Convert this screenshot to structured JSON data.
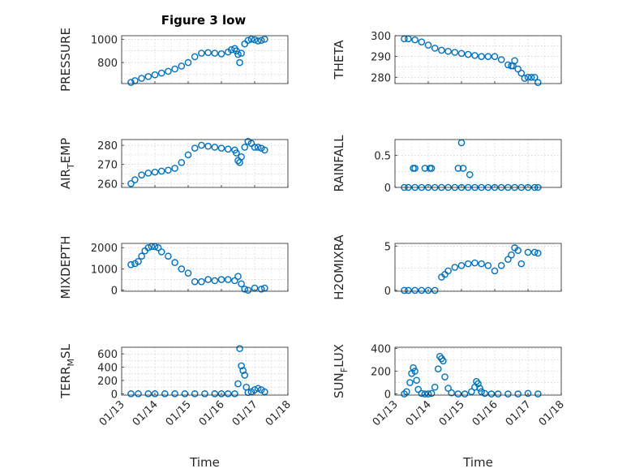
{
  "chart_data": {
    "type": "scatter",
    "title": "Figure 3 low",
    "marker_color": "#0072BD",
    "grid": true,
    "x_ticks": [
      "01/13",
      "01/14",
      "01/15",
      "01/16",
      "01/17",
      "01/18"
    ],
    "x_range_days": [
      13,
      18
    ],
    "xlabel": "Time",
    "panels": [
      {
        "id": "pressure",
        "col": 0,
        "row": 0,
        "ylabel": "PRESSURE",
        "ylim": [
          620,
          1030
        ],
        "yticks": [
          800,
          1000
        ],
        "ytick_labels": [
          "800",
          "1000"
        ],
        "x": [
          13.28,
          13.4,
          13.6,
          13.8,
          14.0,
          14.2,
          14.4,
          14.6,
          14.8,
          15.0,
          15.2,
          15.4,
          15.6,
          15.8,
          16.0,
          16.2,
          16.3,
          16.4,
          16.45,
          16.5,
          16.55,
          16.6,
          16.7,
          16.8,
          16.9,
          17.0,
          17.1,
          17.2,
          17.3
        ],
        "y": [
          630,
          645,
          665,
          680,
          695,
          710,
          725,
          745,
          770,
          800,
          850,
          880,
          885,
          880,
          875,
          890,
          910,
          920,
          900,
          870,
          800,
          880,
          960,
          990,
          1000,
          995,
          985,
          990,
          1000
        ]
      },
      {
        "id": "theta",
        "col": 1,
        "row": 0,
        "ylabel": "THETA",
        "ylim": [
          277,
          300
        ],
        "yticks": [
          280,
          290,
          300
        ],
        "ytick_labels": [
          "280",
          "290",
          "300"
        ],
        "x": [
          13.28,
          13.4,
          13.6,
          13.8,
          14.0,
          14.2,
          14.4,
          14.6,
          14.8,
          15.0,
          15.2,
          15.4,
          15.6,
          15.8,
          16.0,
          16.2,
          16.4,
          16.5,
          16.55,
          16.6,
          16.7,
          16.8,
          16.9,
          17.0,
          17.1,
          17.2,
          17.3
        ],
        "y": [
          298.5,
          298.5,
          298,
          297,
          295.5,
          294,
          293,
          292.5,
          292,
          291.5,
          291,
          290.5,
          290,
          290,
          290,
          288.5,
          286,
          285.5,
          285.5,
          288,
          284,
          282,
          279.5,
          280,
          280,
          280,
          277.5
        ]
      },
      {
        "id": "air_temp",
        "col": 0,
        "row": 1,
        "ylabel": "AIR",
        "ylabel_sub": "T",
        "ylabel_rest": "EMP",
        "ylim": [
          258,
          283
        ],
        "yticks": [
          260,
          270,
          280
        ],
        "ytick_labels": [
          "260",
          "270",
          "280"
        ],
        "x": [
          13.28,
          13.4,
          13.6,
          13.8,
          14.0,
          14.2,
          14.4,
          14.6,
          14.8,
          15.0,
          15.2,
          15.4,
          15.6,
          15.8,
          16.0,
          16.2,
          16.4,
          16.45,
          16.5,
          16.55,
          16.6,
          16.7,
          16.8,
          16.9,
          17.0,
          17.1,
          17.2,
          17.3
        ],
        "y": [
          260,
          262,
          264.5,
          265.5,
          266,
          266.5,
          267,
          268,
          271,
          275,
          278.5,
          280,
          279.5,
          279,
          278.5,
          278,
          277.5,
          276,
          272,
          271,
          274,
          279,
          282,
          281,
          279,
          279,
          278.5,
          277.5
        ]
      },
      {
        "id": "rainfall",
        "col": 1,
        "row": 1,
        "ylabel": "RAINFALL",
        "ylim": [
          0,
          0.75
        ],
        "yticks": [
          0,
          0.5
        ],
        "ytick_labels": [
          "0",
          "0.5"
        ],
        "x": [
          13.28,
          13.4,
          13.6,
          13.8,
          14.0,
          14.2,
          14.4,
          14.6,
          14.8,
          15.0,
          15.2,
          15.4,
          15.6,
          15.8,
          16.0,
          16.2,
          16.4,
          16.6,
          16.8,
          17.0,
          17.2,
          17.3,
          13.55,
          13.6,
          13.9,
          14.05,
          14.1,
          14.9,
          15.05,
          15.0,
          15.25
        ],
        "y": [
          0,
          0,
          0,
          0,
          0,
          0,
          0,
          0,
          0,
          0,
          0,
          0,
          0,
          0,
          0,
          0,
          0,
          0,
          0,
          0,
          0,
          0,
          0.3,
          0.3,
          0.3,
          0.3,
          0.3,
          0.3,
          0.3,
          0.7,
          0.2
        ]
      },
      {
        "id": "mixdepth",
        "col": 0,
        "row": 2,
        "ylabel": "MIXDEPTH",
        "ylim": [
          -50,
          2200
        ],
        "yticks": [
          0,
          1000,
          2000
        ],
        "ytick_labels": [
          "0",
          "1000",
          "2000"
        ],
        "x": [
          13.28,
          13.4,
          13.5,
          13.6,
          13.7,
          13.8,
          13.9,
          14.0,
          14.1,
          14.2,
          14.4,
          14.6,
          14.8,
          15.0,
          15.2,
          15.4,
          15.6,
          15.8,
          16.0,
          16.2,
          16.4,
          16.5,
          16.6,
          16.7,
          16.8,
          17.0,
          17.2,
          17.3
        ],
        "y": [
          1200,
          1250,
          1350,
          1600,
          1850,
          2000,
          2050,
          2050,
          2000,
          1800,
          1600,
          1300,
          1000,
          800,
          400,
          400,
          500,
          450,
          500,
          500,
          450,
          650,
          300,
          50,
          0,
          100,
          50,
          100
        ]
      },
      {
        "id": "h2omixra",
        "col": 1,
        "row": 2,
        "ylabel": "H2OMIXRA",
        "ylim": [
          -0.1,
          5.3
        ],
        "yticks": [
          0,
          5
        ],
        "ytick_labels": [
          "0",
          "5"
        ],
        "x": [
          13.28,
          13.4,
          13.6,
          13.8,
          14.0,
          14.2,
          14.4,
          14.5,
          14.6,
          14.8,
          15.0,
          15.2,
          15.4,
          15.6,
          15.8,
          16.0,
          16.2,
          16.4,
          16.5,
          16.6,
          16.7,
          16.8,
          17.0,
          17.2,
          17.3
        ],
        "y": [
          0,
          0,
          0,
          0,
          0,
          0,
          1.5,
          1.8,
          2.2,
          2.6,
          2.8,
          3.0,
          3.1,
          3.0,
          2.8,
          2.2,
          2.8,
          3.5,
          4.0,
          4.8,
          4.5,
          3.0,
          4.3,
          4.3,
          4.2
        ]
      },
      {
        "id": "terr_msl",
        "col": 0,
        "row": 3,
        "ylabel": "TERR",
        "ylabel_sub": "M",
        "ylabel_rest": "SL",
        "ylim": [
          -20,
          700
        ],
        "yticks": [
          0,
          200,
          400,
          600
        ],
        "ytick_labels": [
          "0",
          "200",
          "400",
          "600"
        ],
        "x": [
          13.28,
          13.5,
          13.8,
          14.0,
          14.3,
          14.6,
          14.9,
          15.2,
          15.5,
          15.8,
          16.0,
          16.2,
          16.4,
          16.5,
          16.55,
          16.6,
          16.65,
          16.7,
          16.75,
          16.8,
          16.9,
          17.0,
          17.1,
          17.2,
          17.3
        ],
        "y": [
          0,
          0,
          0,
          0,
          0,
          0,
          0,
          0,
          0,
          0,
          0,
          0,
          0,
          150,
          680,
          420,
          350,
          280,
          100,
          20,
          30,
          60,
          80,
          60,
          30
        ]
      },
      {
        "id": "sun_flux",
        "col": 1,
        "row": 3,
        "ylabel": "SUN",
        "ylabel_sub": "F",
        "ylabel_rest": "LUX",
        "ylim": [
          -10,
          410
        ],
        "yticks": [
          0,
          200,
          400
        ],
        "ytick_labels": [
          "0",
          "200",
          "400"
        ],
        "x": [
          13.28,
          13.35,
          13.45,
          13.5,
          13.55,
          13.6,
          13.65,
          13.7,
          13.8,
          13.9,
          14.0,
          14.1,
          14.2,
          14.3,
          14.35,
          14.4,
          14.45,
          14.5,
          14.6,
          14.7,
          14.9,
          15.1,
          15.3,
          15.4,
          15.45,
          15.5,
          15.55,
          15.6,
          15.7,
          15.9,
          16.1,
          16.4,
          16.7,
          17.0,
          17.3
        ],
        "y": [
          0,
          20,
          100,
          180,
          230,
          200,
          120,
          40,
          5,
          0,
          0,
          5,
          60,
          220,
          330,
          310,
          290,
          150,
          50,
          10,
          0,
          0,
          20,
          60,
          110,
          90,
          50,
          20,
          5,
          0,
          0,
          0,
          0,
          5,
          0
        ]
      }
    ]
  }
}
